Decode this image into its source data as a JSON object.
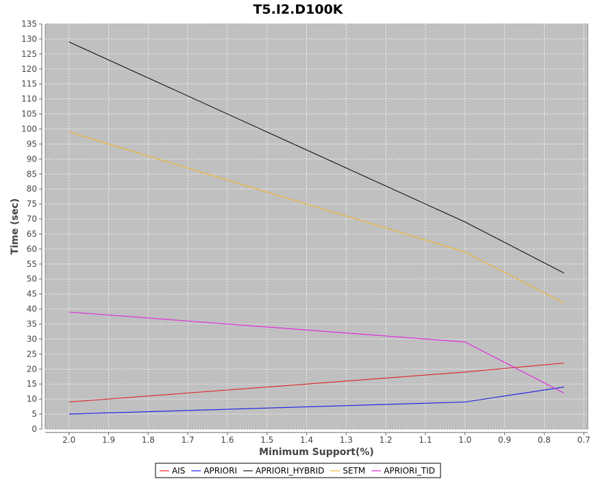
{
  "chart_data": {
    "type": "line",
    "title": "T5.I2.D100K",
    "xlabel": "Minimum Support(%)",
    "ylabel": "Time (sec)",
    "x_reversed": true,
    "xlim": [
      2.06,
      0.69
    ],
    "ylim": [
      0,
      135
    ],
    "x_ticks": [
      2.0,
      1.9,
      1.8,
      1.7,
      1.6,
      1.5,
      1.4,
      1.3,
      1.2,
      1.1,
      1.0,
      0.9,
      0.8,
      0.7
    ],
    "y_ticks": [
      0,
      5,
      10,
      15,
      20,
      25,
      30,
      35,
      40,
      45,
      50,
      55,
      60,
      65,
      70,
      75,
      80,
      85,
      90,
      95,
      100,
      105,
      110,
      115,
      120,
      125,
      130,
      135
    ],
    "grid": true,
    "background_color": "#c0c0c0",
    "grid_color": "#ffffff",
    "legend_position": "bottom-center",
    "x": [
      2.0,
      1.0,
      0.75
    ],
    "series": [
      {
        "name": "AIS",
        "color": "#e02020",
        "values": [
          9,
          19,
          22
        ]
      },
      {
        "name": "APRIORI",
        "color": "#1a1ae6",
        "values": [
          5,
          9,
          14
        ]
      },
      {
        "name": "APRIORI_HYBRID",
        "color": "#111111",
        "values": [
          129,
          69,
          52
        ]
      },
      {
        "name": "SETM",
        "color": "#f0b428",
        "values": [
          99,
          59,
          42
        ]
      },
      {
        "name": "APRIORI_TID",
        "color": "#e020e0",
        "values": [
          39,
          29,
          12
        ]
      }
    ]
  }
}
